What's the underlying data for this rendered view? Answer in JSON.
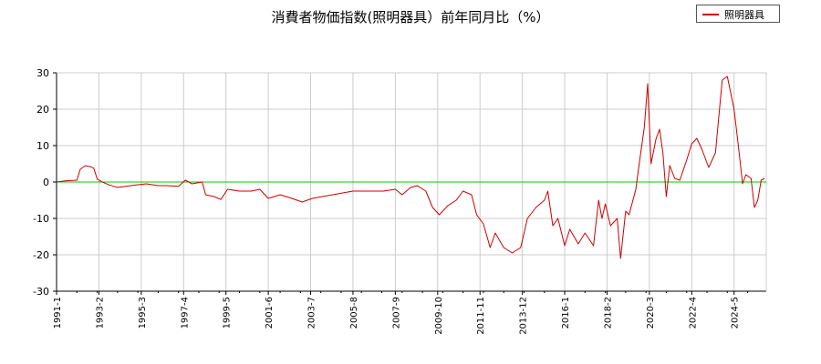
{
  "chart_data": {
    "type": "line",
    "title": "消費者物価指数(照明器具）前年同月比（%）",
    "xlabel": "",
    "ylabel": "",
    "ylim": [
      -30,
      30
    ],
    "yticks": [
      "30",
      "20",
      "10",
      "0",
      "-10",
      "-20",
      "-30"
    ],
    "xticks": [
      "1991-1",
      "1993-2",
      "1995-3",
      "1997-4",
      "1999-5",
      "2001-6",
      "2003-7",
      "2005-8",
      "2007-9",
      "2009-10",
      "2011-11",
      "2013-12",
      "2016-1",
      "2018-2",
      "2020-3",
      "2022-4",
      "2024-5"
    ],
    "grid": true,
    "legend_position": "top-right",
    "zero_line_color": "#00cc00",
    "series": [
      {
        "name": "照明器具",
        "color": "#cc0000",
        "points": [
          [
            "1991-1",
            0.0
          ],
          [
            "1991-6",
            0.3
          ],
          [
            "1992-1",
            0.5
          ],
          [
            "1992-3",
            3.5
          ],
          [
            "1992-6",
            4.5
          ],
          [
            "1992-9",
            4.2
          ],
          [
            "1992-11",
            3.8
          ],
          [
            "1993-1",
            0.8
          ],
          [
            "1993-4",
            0.0
          ],
          [
            "1993-8",
            -0.8
          ],
          [
            "1994-1",
            -1.5
          ],
          [
            "1994-6",
            -1.2
          ],
          [
            "1994-12",
            -0.8
          ],
          [
            "1995-6",
            -0.5
          ],
          [
            "1996-1",
            -1.0
          ],
          [
            "1996-6",
            -1.0
          ],
          [
            "1997-1",
            -1.2
          ],
          [
            "1997-5",
            0.5
          ],
          [
            "1997-9",
            -0.5
          ],
          [
            "1998-3",
            0.0
          ],
          [
            "1998-5",
            -3.5
          ],
          [
            "1998-10",
            -4.0
          ],
          [
            "1999-2",
            -4.8
          ],
          [
            "1999-6",
            -2.0
          ],
          [
            "2000-1",
            -2.5
          ],
          [
            "2000-8",
            -2.5
          ],
          [
            "2001-1",
            -2.0
          ],
          [
            "2001-6",
            -4.5
          ],
          [
            "2002-1",
            -3.5
          ],
          [
            "2002-8",
            -4.5
          ],
          [
            "2003-2",
            -5.5
          ],
          [
            "2003-8",
            -4.5
          ],
          [
            "2004-2",
            -4.0
          ],
          [
            "2004-8",
            -3.5
          ],
          [
            "2005-2",
            -3.0
          ],
          [
            "2005-8",
            -2.5
          ],
          [
            "2006-2",
            -2.5
          ],
          [
            "2006-8",
            -2.5
          ],
          [
            "2007-2",
            -2.5
          ],
          [
            "2007-9",
            -2.0
          ],
          [
            "2008-1",
            -3.5
          ],
          [
            "2008-6",
            -1.5
          ],
          [
            "2008-10",
            -1.0
          ],
          [
            "2009-3",
            -2.5
          ],
          [
            "2009-7",
            -7.0
          ],
          [
            "2009-11",
            -9.0
          ],
          [
            "2010-4",
            -6.5
          ],
          [
            "2010-9",
            -5.0
          ],
          [
            "2011-1",
            -2.5
          ],
          [
            "2011-6",
            -3.5
          ],
          [
            "2011-9",
            -9.0
          ],
          [
            "2012-1",
            -11.5
          ],
          [
            "2012-5",
            -18.0
          ],
          [
            "2012-8",
            -14.0
          ],
          [
            "2013-1",
            -18.0
          ],
          [
            "2013-6",
            -19.5
          ],
          [
            "2013-11",
            -18.0
          ],
          [
            "2014-3",
            -10.0
          ],
          [
            "2014-8",
            -7.0
          ],
          [
            "2015-1",
            -5.0
          ],
          [
            "2015-3",
            -2.5
          ],
          [
            "2015-6",
            -12.0
          ],
          [
            "2015-9",
            -10.0
          ],
          [
            "2016-1",
            -17.5
          ],
          [
            "2016-4",
            -13.0
          ],
          [
            "2016-9",
            -17.0
          ],
          [
            "2017-1",
            -14.0
          ],
          [
            "2017-6",
            -17.5
          ],
          [
            "2017-9",
            -5.0
          ],
          [
            "2017-11",
            -10.0
          ],
          [
            "2018-1",
            -6.0
          ],
          [
            "2018-4",
            -12.0
          ],
          [
            "2018-8",
            -10.0
          ],
          [
            "2018-10",
            -21.0
          ],
          [
            "2019-1",
            -8.0
          ],
          [
            "2019-3",
            -9.0
          ],
          [
            "2019-7",
            -2.0
          ],
          [
            "2019-9",
            5.0
          ],
          [
            "2019-12",
            15.0
          ],
          [
            "2020-2",
            27.0
          ],
          [
            "2020-4",
            5.0
          ],
          [
            "2020-7",
            12.0
          ],
          [
            "2020-9",
            14.5
          ],
          [
            "2020-11",
            8.0
          ],
          [
            "2021-1",
            -4.0
          ],
          [
            "2021-3",
            4.5
          ],
          [
            "2021-6",
            1.0
          ],
          [
            "2021-9",
            0.5
          ],
          [
            "2022-1",
            6.0
          ],
          [
            "2022-4",
            10.5
          ],
          [
            "2022-7",
            12.0
          ],
          [
            "2022-10",
            9.0
          ],
          [
            "2023-2",
            4.0
          ],
          [
            "2023-6",
            8.0
          ],
          [
            "2023-10",
            28.0
          ],
          [
            "2024-1",
            29.0
          ],
          [
            "2024-5",
            20.0
          ],
          [
            "2024-8",
            8.0
          ],
          [
            "2024-10",
            -0.5
          ],
          [
            "2024-12",
            2.0
          ],
          [
            "2025-3",
            1.0
          ],
          [
            "2025-5",
            -7.0
          ],
          [
            "2025-7",
            -5.0
          ],
          [
            "2025-9",
            0.5
          ],
          [
            "2025-11",
            1.0
          ]
        ]
      }
    ]
  }
}
